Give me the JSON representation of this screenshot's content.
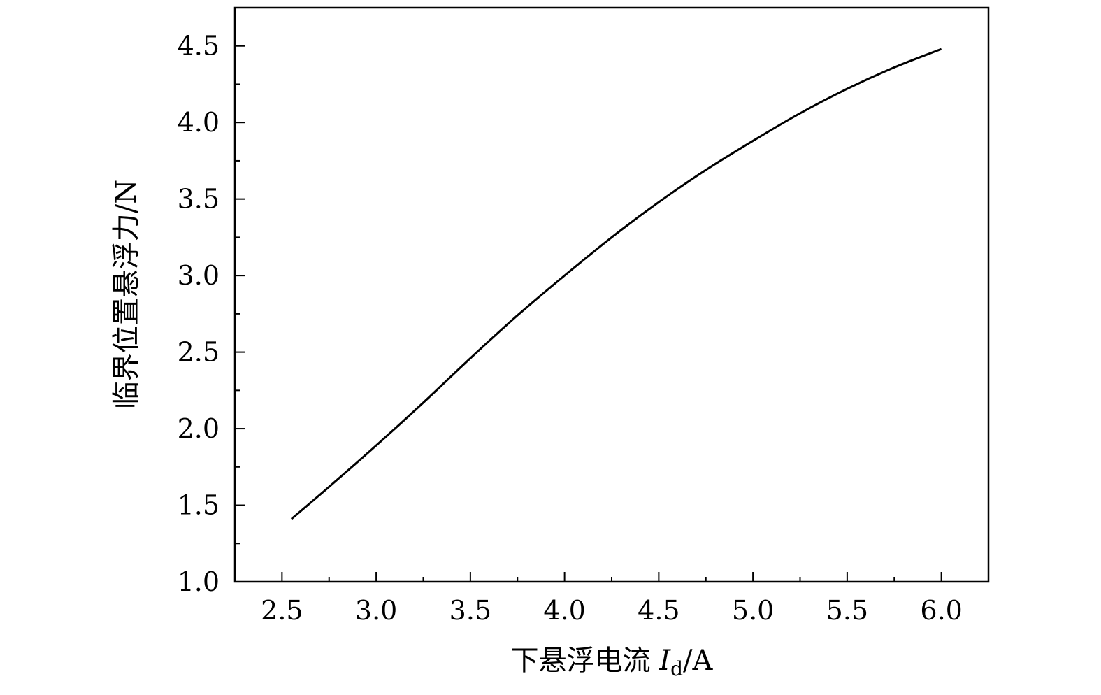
{
  "chart_data": {
    "type": "line",
    "title": "",
    "xlabel": {
      "prefix": "下悬浮电流 ",
      "var": "I",
      "sub": "d",
      "unit": "/A"
    },
    "ylabel": "临界位置悬浮力/N",
    "xlim": [
      2.25,
      6.25
    ],
    "ylim": [
      1.0,
      4.75
    ],
    "xticks": [
      2.5,
      3.0,
      3.5,
      4.0,
      4.5,
      5.0,
      5.5,
      6.0
    ],
    "xtick_labels": [
      "2.5",
      "3.0",
      "3.5",
      "4.0",
      "4.5",
      "5.0",
      "5.5",
      "6.0"
    ],
    "yticks": [
      1.0,
      1.5,
      2.0,
      2.5,
      3.0,
      3.5,
      4.0,
      4.5
    ],
    "ytick_labels": [
      "1.0",
      "1.5",
      "2.0",
      "2.5",
      "3.0",
      "3.5",
      "4.0",
      "4.5"
    ],
    "grid": false,
    "series": [
      {
        "color": "#000000",
        "x": [
          2.55,
          2.75,
          3.0,
          3.25,
          3.5,
          3.75,
          4.0,
          4.25,
          4.5,
          4.75,
          5.0,
          5.25,
          5.5,
          5.75,
          6.0
        ],
        "y": [
          1.41,
          1.62,
          1.89,
          2.17,
          2.46,
          2.74,
          3.0,
          3.25,
          3.48,
          3.69,
          3.88,
          4.06,
          4.22,
          4.36,
          4.48
        ]
      }
    ]
  }
}
